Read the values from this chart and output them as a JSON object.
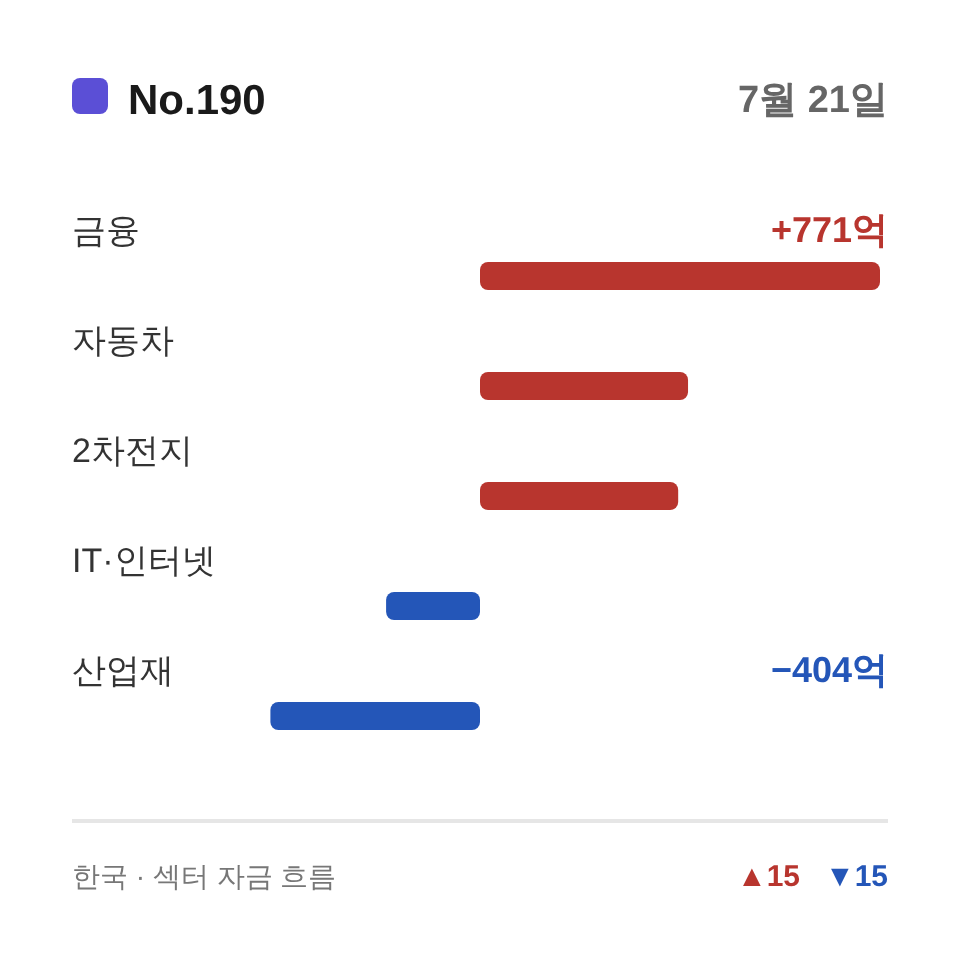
{
  "chart_data": {
    "type": "bar",
    "orientation": "horizontal",
    "title": "No.190",
    "subtitle": "7월 21일",
    "categories": [
      "금융",
      "자동차",
      "2차전지",
      "IT·인터넷",
      "산업재"
    ],
    "values": [
      771,
      401,
      382,
      -181,
      -404
    ],
    "colors": [
      "#b8352e",
      "#b8352e",
      "#b8352e",
      "#2456b8",
      "#2456b8"
    ],
    "value_labels": [
      "+771억",
      null,
      null,
      null,
      "−404억"
    ],
    "annotations": [
      "한국 · 섹터 자금 흐름",
      "▲15",
      "▼15"
    ]
  }
}
